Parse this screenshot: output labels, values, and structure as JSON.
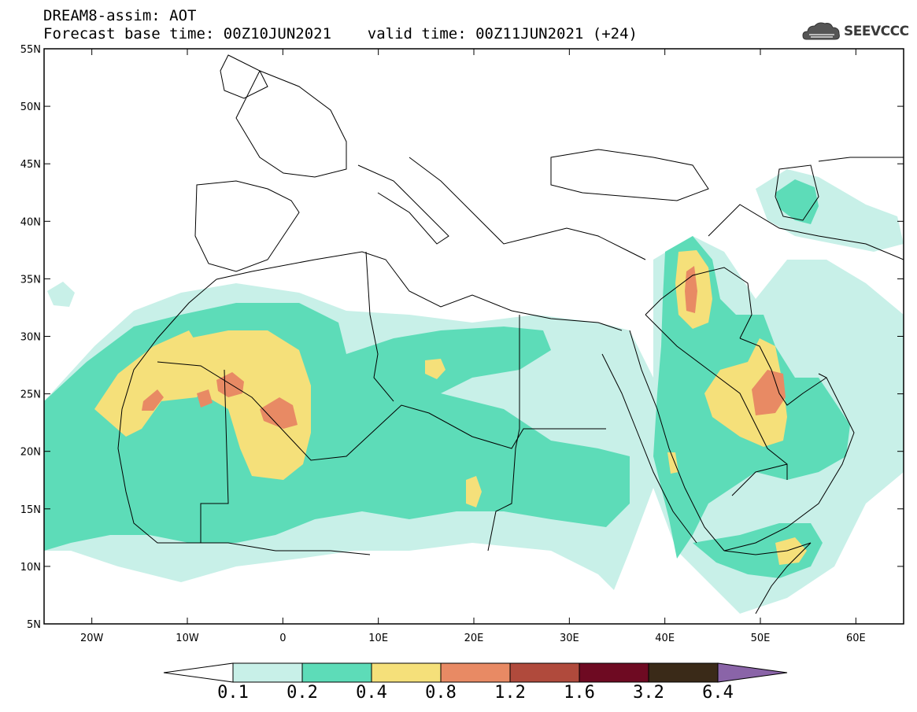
{
  "title": {
    "line1": "DREAM8-assim: AOT",
    "line2": "Forecast base time: 00Z10JUN2021    valid time: 00Z11JUN2021 (+24)"
  },
  "logo": {
    "text": "SEEVCCC",
    "icon": "cloud-logo-icon"
  },
  "map": {
    "lon_labels": [
      "20W",
      "10W",
      "0",
      "10E",
      "20E",
      "30E",
      "40E",
      "50E",
      "60E"
    ],
    "lat_labels": [
      "55N",
      "50N",
      "45N",
      "40N",
      "35N",
      "30N",
      "25N",
      "20N",
      "15N",
      "10N",
      "5N"
    ],
    "extent": {
      "lon": [
        -25,
        65
      ],
      "lat": [
        5,
        55
      ]
    }
  },
  "colorbar": {
    "labels": [
      "0.1",
      "0.2",
      "0.4",
      "0.8",
      "1.2",
      "1.6",
      "3.2",
      "6.4"
    ],
    "colors": [
      "#c8f0e8",
      "#5ddcb8",
      "#f5e07a",
      "#e88a64",
      "#b04a3c",
      "#6e0a22",
      "#3a2a18",
      "#8a64a8"
    ],
    "under_color": "#ffffff"
  }
}
